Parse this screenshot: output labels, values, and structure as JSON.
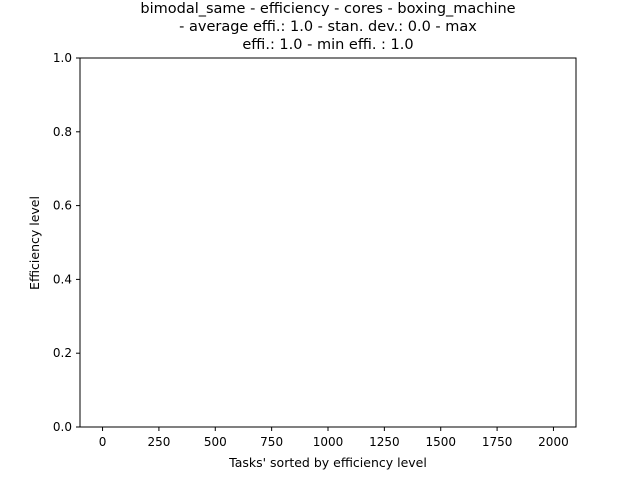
{
  "chart_data": {
    "type": "line",
    "title_lines": [
      "bimodal_same - efficiency - cores - boxing_machine",
      "- average effi.: 1.0 - stan. dev.: 0.0 - max",
      "effi.: 1.0 - min effi. : 1.0"
    ],
    "xlabel": "Tasks' sorted by efficiency level",
    "ylabel": "Efficiency level",
    "xlim": [
      -100,
      2100
    ],
    "ylim": [
      0.0,
      1.0
    ],
    "xticks": [
      0,
      250,
      500,
      750,
      1000,
      1250,
      1500,
      1750,
      2000
    ],
    "xtick_labels": [
      "0",
      "250",
      "500",
      "750",
      "1000",
      "1250",
      "1500",
      "1750",
      "2000"
    ],
    "yticks": [
      0.0,
      0.2,
      0.4,
      0.6,
      0.8,
      1.0
    ],
    "ytick_labels": [
      "0.0",
      "0.2",
      "0.4",
      "0.6",
      "0.8",
      "1.0"
    ],
    "grid": false,
    "series": []
  },
  "colors": {
    "axis": "#000000",
    "background": "#ffffff"
  }
}
